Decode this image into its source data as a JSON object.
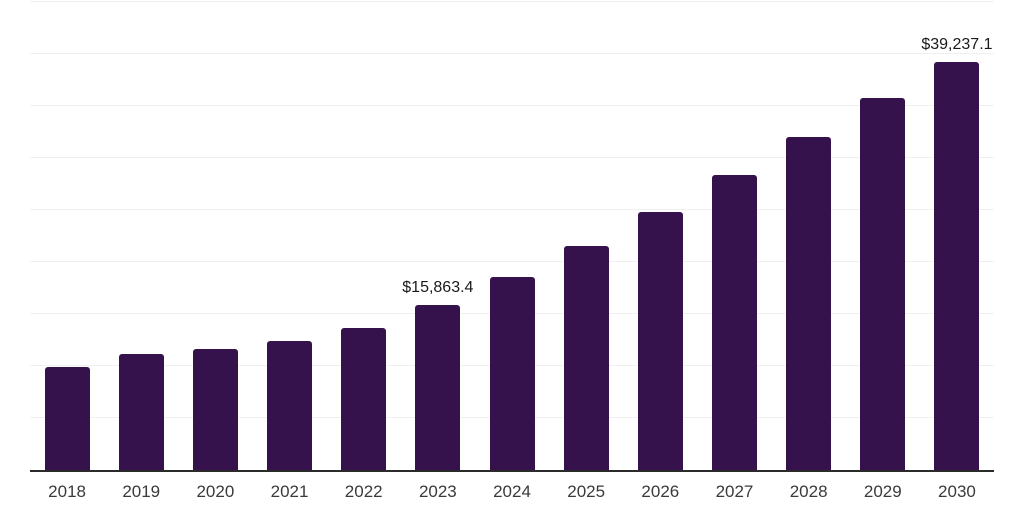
{
  "chart_data": {
    "type": "bar",
    "title": "",
    "xlabel": "",
    "ylabel": "",
    "categories": [
      "2018",
      "2019",
      "2020",
      "2021",
      "2022",
      "2023",
      "2024",
      "2025",
      "2026",
      "2027",
      "2028",
      "2029",
      "2030"
    ],
    "values": [
      9950,
      11150,
      11680,
      12400,
      13700,
      15863.4,
      18530,
      21540,
      24840,
      28360,
      32050,
      35740,
      39237.1
    ],
    "point_labels": [
      "",
      "",
      "",
      "",
      "",
      "$15,863.4",
      "",
      "",
      "",
      "",
      "",
      "",
      "$39,237.1"
    ],
    "ylim": [
      0,
      45000
    ],
    "grid_interval": 5000,
    "grid": "horizontal",
    "y_tick_labels_shown": false,
    "legend": "none",
    "bar_color": "#36124d",
    "axis_color": "#2b2b2b",
    "gridline_color": "#f0f0f2",
    "xlabel_color": "#3a3a3a",
    "datalabel_color": "#1a1a1a"
  }
}
